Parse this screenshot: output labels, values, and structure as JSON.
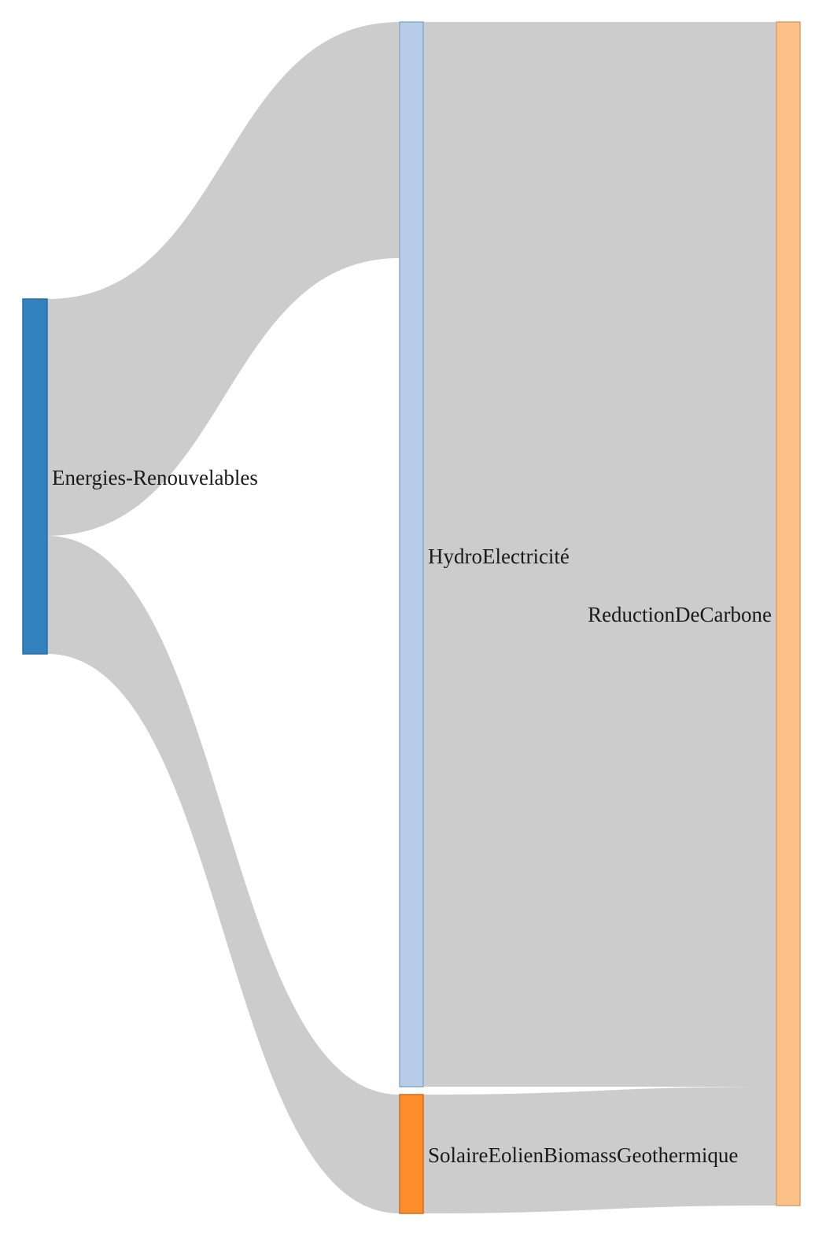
{
  "chart_data": {
    "type": "sankey",
    "nodes": [
      {
        "id": "energies",
        "label": "Energies-Renouvelables",
        "color": "#3182bd",
        "stroke": "#2a6ea3"
      },
      {
        "id": "hydro",
        "label": "HydroElectricité",
        "color": "#b7cce9",
        "stroke": "#8ea6c8"
      },
      {
        "id": "solaire",
        "label": "SolaireEolienBiomassGeothermique",
        "color": "#fd8d2b",
        "stroke": "#c96f1f"
      },
      {
        "id": "reduction",
        "label": "ReductionDeCarbone",
        "color": "#fdc086",
        "stroke": "#d9a06e"
      }
    ],
    "links": [
      {
        "source": "energies",
        "target": "hydro",
        "value": 2
      },
      {
        "source": "energies",
        "target": "solaire",
        "value": 1
      },
      {
        "source": "hydro",
        "target": "reduction",
        "value": 9
      },
      {
        "source": "solaire",
        "target": "reduction",
        "value": 1
      }
    ],
    "link_color": "#cccccc"
  }
}
